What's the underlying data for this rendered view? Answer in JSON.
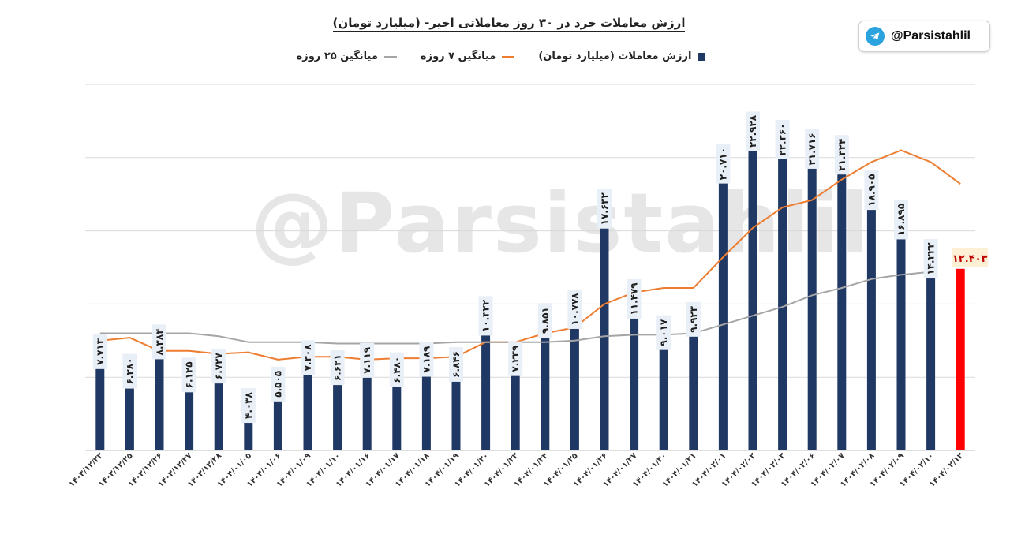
{
  "title": "ارزش معاملات خرد در ۳۰ روز معاملاتی اخیر- (میلیارد تومان)",
  "badge": {
    "handle": "@Parsistahlil",
    "icon": "telegram-icon"
  },
  "watermark": "@Parsistahlil",
  "legend": [
    {
      "label": "ارزش معاملات (میلیارد تومان)",
      "type": "bar",
      "color": "#1f3864"
    },
    {
      "label": "میانگین ۷ روزه",
      "type": "line",
      "color": "#ed7d31"
    },
    {
      "label": "میانگین ۲۵ روزه",
      "type": "line",
      "color": "#a5a5a5"
    }
  ],
  "chart_data": {
    "type": "bar",
    "categories": [
      "۱۴۰۳/۱۲/۲۳",
      "۱۴۰۳/۱۲/۲۵",
      "۱۴۰۳/۱۲/۲۶",
      "۱۴۰۳/۱۲/۲۷",
      "۱۴۰۳/۱۲/۲۸",
      "۱۴۰۴/۰۱/۰۵",
      "۱۴۰۴/۰۱/۰۶",
      "۱۴۰۴/۰۱/۰۹",
      "۱۴۰۴/۰۱/۱۰",
      "۱۴۰۴/۰۱/۱۶",
      "۱۴۰۴/۰۱/۱۷",
      "۱۴۰۴/۰۱/۱۸",
      "۱۴۰۴/۰۱/۱۹",
      "۱۴۰۴/۰۱/۲۰",
      "۱۴۰۴/۰۱/۲۳",
      "۱۴۰۴/۰۱/۲۴",
      "۱۴۰۴/۰۱/۲۵",
      "۱۴۰۴/۰۱/۲۶",
      "۱۴۰۴/۰۱/۲۷",
      "۱۴۰۴/۰۱/۳۰",
      "۱۴۰۴/۰۱/۳۱",
      "۱۴۰۴/۰۲/۰۱",
      "۱۴۰۴/۰۲/۰۲",
      "۱۴۰۴/۰۲/۰۳",
      "۱۴۰۴/۰۲/۰۶",
      "۱۴۰۴/۰۲/۰۷",
      "۱۴۰۴/۰۲/۰۸",
      "۱۴۰۴/۰۲/۰۹",
      "۱۴۰۴/۰۲/۱۰",
      "۱۴۰۴/۰۲/۱۳"
    ],
    "series": [
      {
        "name": "ارزش معاملات (میلیارد تومان)",
        "values": [
          7.713,
          6.38,
          8.384,
          6.125,
          6.727,
          4.038,
          5.505,
          7.308,
          6.621,
          7.119,
          6.48,
          7.189,
          6.846,
          10.322,
          7.239,
          9.851,
          10.778,
          17.632,
          11.479,
          9.017,
          9.923,
          20.71,
          22.928,
          22.36,
          21.716,
          21.324,
          18.905,
          16.895,
          14.222,
          12.403
        ],
        "labels": [
          "۷.۷۱۳",
          "۶.۳۸۰",
          "۸.۳۸۴",
          "۶.۱۲۵",
          "۶.۷۲۷",
          "۴.۰۳۸",
          "۵.۵۰۵",
          "۷.۳۰۸",
          "۶.۶۲۱",
          "۷.۱۱۹",
          "۶.۴۸۰",
          "۷.۱۸۹",
          "۶.۸۴۶",
          "۱۰.۳۲۲",
          "۷.۲۳۹",
          "۹.۸۵۱",
          "۱۰.۷۷۸",
          "۱۷.۶۳۲",
          "۱۱.۴۷۹",
          "۹.۰۱۷",
          "۹.۹۲۳",
          "۲۰.۷۱۰",
          "۲۲.۹۲۸",
          "۲۲.۳۶۰",
          "۲۱.۷۱۶",
          "۲۱.۳۲۴",
          "۱۸.۹۰۵",
          "۱۶.۸۹۵",
          "۱۴.۲۲۲",
          "۱۲.۴۰۳"
        ]
      },
      {
        "name": "میانگین ۷ روزه",
        "values": [
          7.5,
          7.7,
          6.8,
          6.8,
          6.6,
          6.7,
          6.2,
          6.4,
          6.4,
          6.2,
          6.3,
          6.3,
          6.4,
          7.4,
          7.4,
          8.0,
          8.4,
          10.0,
          10.8,
          11.1,
          11.1,
          13.2,
          15.2,
          16.6,
          17.1,
          18.5,
          19.7,
          20.5,
          19.7,
          18.2
        ]
      },
      {
        "name": "میانگین ۲۵ روزه",
        "values": [
          8.0,
          8.0,
          8.0,
          8.0,
          7.8,
          7.4,
          7.4,
          7.4,
          7.3,
          7.3,
          7.3,
          7.3,
          7.4,
          7.4,
          7.4,
          7.4,
          7.5,
          7.8,
          7.9,
          7.9,
          8.0,
          8.6,
          9.2,
          9.8,
          10.6,
          11.1,
          11.7,
          12.0,
          12.2,
          null
        ]
      }
    ],
    "highlight": {
      "index": 29,
      "color": "#ff0000",
      "label_color": "#c00000"
    },
    "ylim": [
      0,
      25
    ],
    "grid": true,
    "legend_position": "top"
  }
}
